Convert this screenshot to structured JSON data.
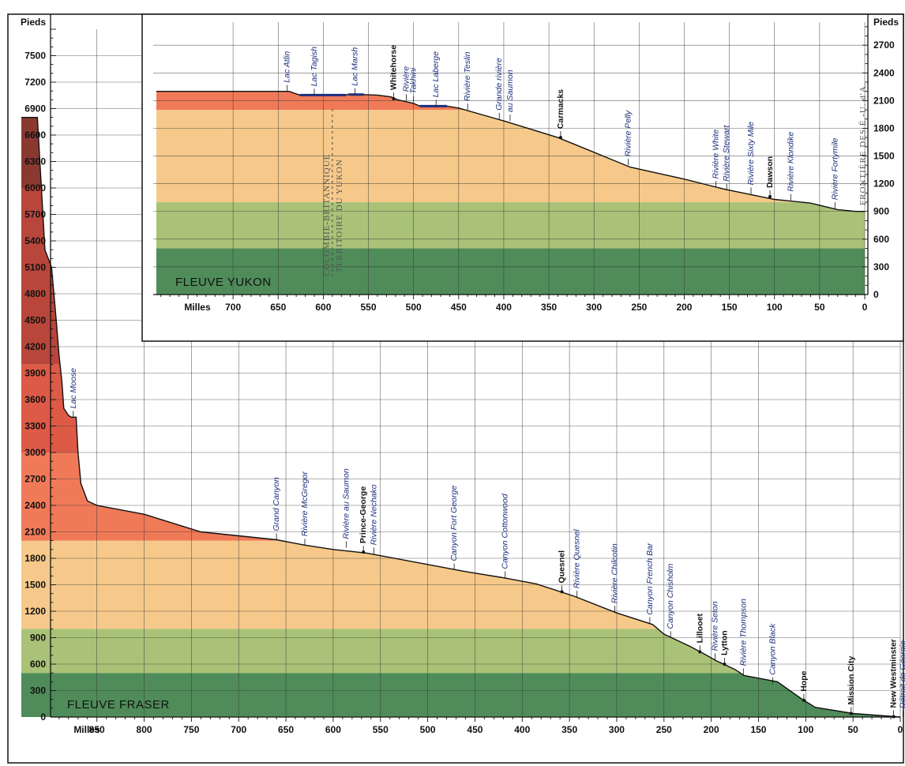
{
  "chart_data": [
    {
      "type": "area",
      "title": "FLEUVE FRASER",
      "xlabel": "Milles",
      "ylabel": "Pieds",
      "xlim": [
        945,
        0
      ],
      "ylim": [
        0,
        7800
      ],
      "x_ticks": [
        "850",
        "800",
        "750",
        "700",
        "650",
        "600",
        "550",
        "500",
        "450",
        "400",
        "350",
        "300",
        "250",
        "200",
        "150",
        "100",
        "50",
        "0"
      ],
      "y_ticks": [
        "0",
        "300",
        "600",
        "900",
        "1200",
        "1500",
        "1800",
        "2100",
        "2400",
        "2700",
        "3000",
        "3300",
        "3600",
        "3900",
        "4200",
        "4500",
        "4800",
        "5100",
        "5400",
        "5700",
        "6000",
        "6300",
        "6600",
        "6900",
        "7200",
        "7500"
      ],
      "elevation_bands": [
        {
          "from": 0,
          "to": 500,
          "color": "#4f8c5a"
        },
        {
          "from": 500,
          "to": 1000,
          "color": "#a9c277"
        },
        {
          "from": 1000,
          "to": 2000,
          "color": "#f6c98a"
        },
        {
          "from": 2000,
          "to": 3000,
          "color": "#f07a58"
        },
        {
          "from": 3000,
          "to": 4000,
          "color": "#dd5a46"
        },
        {
          "from": 4000,
          "to": 6000,
          "color": "#b8463b"
        },
        {
          "from": 6000,
          "to": 6800,
          "color": "#8a3931"
        }
      ],
      "profile": {
        "x": [
          930,
          913,
          905,
          898,
          893,
          890,
          887,
          885,
          880,
          877,
          872,
          870,
          867,
          860,
          850,
          800,
          740,
          660,
          630,
          600,
          565,
          500,
          460,
          420,
          385,
          345,
          300,
          262,
          250,
          222,
          205,
          195,
          175,
          165,
          130,
          105,
          90,
          50,
          0
        ],
        "y": [
          6800,
          6800,
          5300,
          5100,
          4500,
          4100,
          3800,
          3500,
          3420,
          3400,
          3400,
          3000,
          2650,
          2450,
          2400,
          2300,
          2100,
          2010,
          1950,
          1900,
          1860,
          1730,
          1650,
          1580,
          1510,
          1370,
          1180,
          1050,
          940,
          800,
          700,
          640,
          540,
          470,
          400,
          210,
          110,
          40,
          0
        ]
      },
      "labels": [
        {
          "x": 875,
          "y": 3400,
          "text": "Lac Moose",
          "kind": "river"
        },
        {
          "x": 660,
          "y": 2010,
          "text": "Grand Canyon",
          "kind": "river"
        },
        {
          "x": 630,
          "y": 1950,
          "text": "Rivière McGregor",
          "kind": "river"
        },
        {
          "x": 586,
          "y": 1920,
          "text": "Rivière au Saumon",
          "kind": "river"
        },
        {
          "x": 568,
          "y": 1870,
          "text": "Prince-George",
          "kind": "town"
        },
        {
          "x": 557,
          "y": 1850,
          "text": "Rivière Nechako",
          "kind": "river"
        },
        {
          "x": 472,
          "y": 1670,
          "text": "Canyon Fort George",
          "kind": "river"
        },
        {
          "x": 418,
          "y": 1580,
          "text": "Canyon Cottonwood",
          "kind": "river"
        },
        {
          "x": 358,
          "y": 1420,
          "text": "Quesnel",
          "kind": "town"
        },
        {
          "x": 342,
          "y": 1360,
          "text": "Rivière Quesnel",
          "kind": "river"
        },
        {
          "x": 302,
          "y": 1190,
          "text": "Rivière Chilcotin",
          "kind": "river"
        },
        {
          "x": 265,
          "y": 1060,
          "text": "Canyon French Bar",
          "kind": "river"
        },
        {
          "x": 243,
          "y": 900,
          "text": "Canyon Chisholm",
          "kind": "river"
        },
        {
          "x": 212,
          "y": 740,
          "text": "Lillooet",
          "kind": "town"
        },
        {
          "x": 196,
          "y": 650,
          "text": "Rivière Seton",
          "kind": "river"
        },
        {
          "x": 186,
          "y": 600,
          "text": "Lytton",
          "kind": "town"
        },
        {
          "x": 166,
          "y": 480,
          "text": "Rivière Thompson",
          "kind": "river"
        },
        {
          "x": 135,
          "y": 380,
          "text": "Canyon Black",
          "kind": "river"
        },
        {
          "x": 102,
          "y": 190,
          "text": "Hope",
          "kind": "town"
        },
        {
          "x": 52,
          "y": 40,
          "text": "Mission City",
          "kind": "town"
        },
        {
          "x": 7,
          "y": 5,
          "text": "New Westminster",
          "kind": "town"
        },
        {
          "x": -3,
          "y": 0,
          "text": "Détroit de Géorgie",
          "kind": "river"
        }
      ]
    },
    {
      "type": "area",
      "title": "FLEUVE YUKON",
      "xlabel": "Milles",
      "ylabel": "Pieds",
      "xlim": [
        785,
        0
      ],
      "ylim": [
        0,
        2950
      ],
      "x_ticks": [
        "700",
        "650",
        "600",
        "550",
        "500",
        "450",
        "400",
        "350",
        "300",
        "250",
        "200",
        "150",
        "100",
        "50",
        "0"
      ],
      "y_ticks": [
        "0",
        "300",
        "600",
        "900",
        "1200",
        "1500",
        "1800",
        "2100",
        "2400",
        "2700"
      ],
      "elevation_bands": [
        {
          "from": 0,
          "to": 500,
          "color": "#4f8c5a"
        },
        {
          "from": 500,
          "to": 1000,
          "color": "#a9c277"
        },
        {
          "from": 1000,
          "to": 2000,
          "color": "#f6c98a"
        },
        {
          "from": 2000,
          "to": 2200,
          "color": "#f07a58"
        }
      ],
      "profile": {
        "x": [
          785,
          638,
          626,
          575,
          572,
          540,
          525,
          518,
          500,
          493,
          463,
          450,
          400,
          340,
          310,
          260,
          200,
          155,
          100,
          60,
          30,
          10,
          0
        ],
        "y": [
          2200,
          2200,
          2160,
          2160,
          2170,
          2160,
          2140,
          2110,
          2070,
          2040,
          2040,
          2020,
          1880,
          1700,
          1580,
          1380,
          1250,
          1140,
          1030,
          990,
          920,
          900,
          900
        ]
      },
      "lakes": [
        {
          "x_from": 626,
          "x_to": 575,
          "y": 2160
        },
        {
          "x_from": 572,
          "x_to": 555,
          "y": 2165
        },
        {
          "x_from": 493,
          "x_to": 463,
          "y": 2040
        }
      ],
      "labels": [
        {
          "x": 640,
          "y": 2200,
          "text": "Lac Atlin",
          "kind": "river"
        },
        {
          "x": 610,
          "y": 2160,
          "text": "Lac Tagish",
          "kind": "river"
        },
        {
          "x": 565,
          "y": 2165,
          "text": "Lac Marsh",
          "kind": "river"
        },
        {
          "x": 522,
          "y": 2120,
          "text": "Whitehorse",
          "kind": "town"
        },
        {
          "x": 508,
          "y": 2100,
          "text": "Rivière",
          "kind": "river"
        },
        {
          "x": 500,
          "y": 2080,
          "text": "Takhini",
          "kind": "river"
        },
        {
          "x": 475,
          "y": 2040,
          "text": "Lac Laberge",
          "kind": "river"
        },
        {
          "x": 440,
          "y": 2000,
          "text": "Rivière Teslin",
          "kind": "river"
        },
        {
          "x": 405,
          "y": 1900,
          "text": "Grande rivière",
          "kind": "river"
        },
        {
          "x": 393,
          "y": 1880,
          "text": "au Saumon",
          "kind": "river"
        },
        {
          "x": 337,
          "y": 1700,
          "text": "Carmacks",
          "kind": "town"
        },
        {
          "x": 262,
          "y": 1400,
          "text": "Rivière Pelly",
          "kind": "river"
        },
        {
          "x": 165,
          "y": 1160,
          "text": "Rivière White",
          "kind": "river"
        },
        {
          "x": 153,
          "y": 1130,
          "text": "Rivière Stewart",
          "kind": "river"
        },
        {
          "x": 126,
          "y": 1090,
          "text": "Rivière Sixty Mile",
          "kind": "river"
        },
        {
          "x": 105,
          "y": 1060,
          "text": "Dawson",
          "kind": "town"
        },
        {
          "x": 82,
          "y": 1020,
          "text": "Rivière Klondike",
          "kind": "river"
        },
        {
          "x": 33,
          "y": 930,
          "text": "Rivière Fortymile",
          "kind": "river"
        }
      ],
      "border_labels": [
        "COLOMBIE-BRITANNIQUE",
        "TERRITOIRE DU YUKON",
        "FRONTIÈRE DES É.-U. d'A."
      ]
    }
  ]
}
